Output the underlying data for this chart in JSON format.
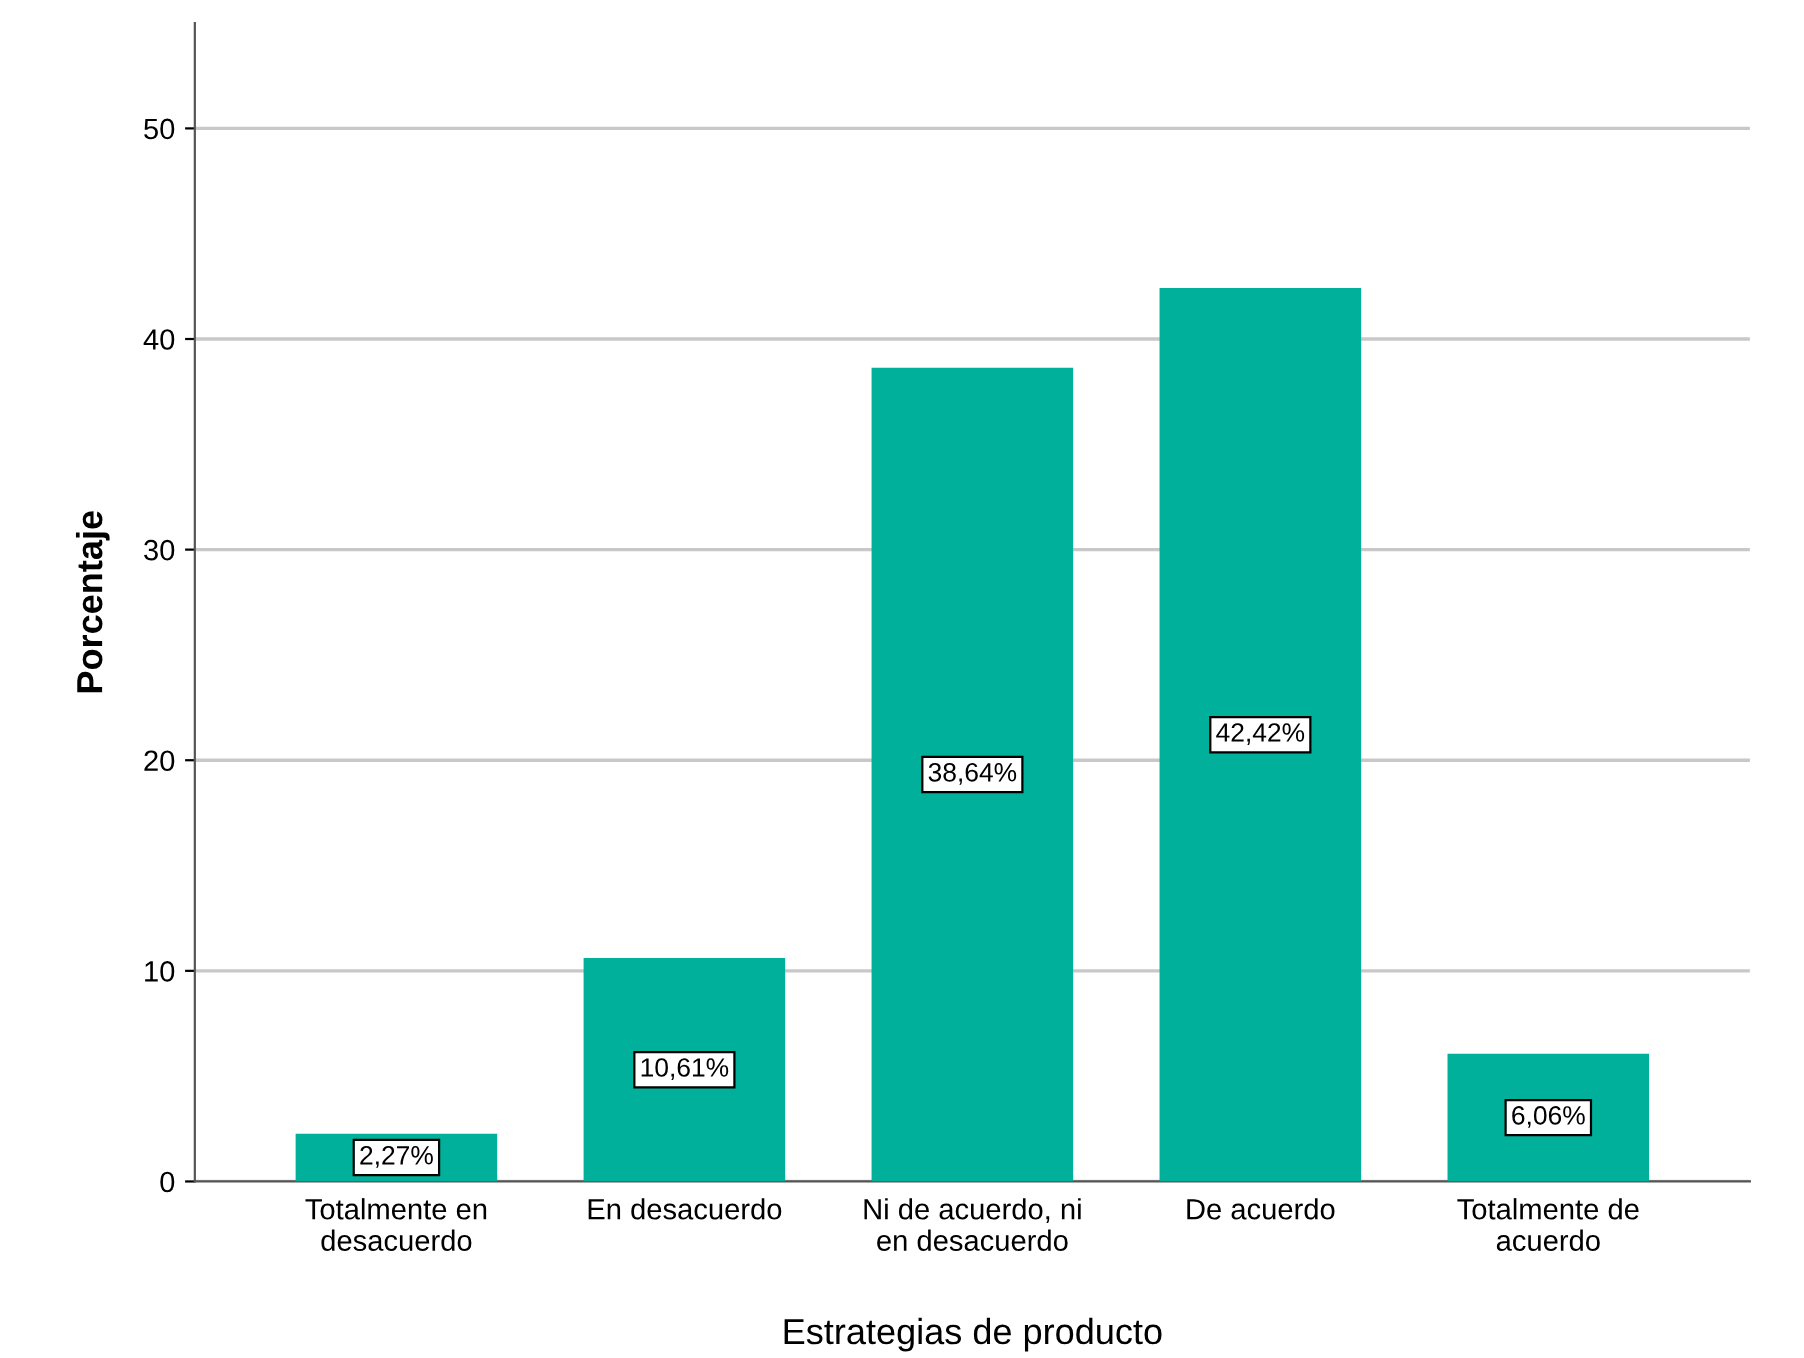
{
  "chart_data": {
    "type": "bar",
    "xlabel": "Estrategias de producto",
    "ylabel": "Porcentaje",
    "categories": [
      "Totalmente en\ndesacuerdo",
      "En desacuerdo",
      "Ni de acuerdo, ni\nen desacuerdo",
      "De acuerdo",
      "Totalmente de\nacuerdo"
    ],
    "values": [
      2.27,
      10.61,
      38.64,
      42.42,
      6.06
    ],
    "value_labels": [
      "2,27%",
      "10,61%",
      "38,64%",
      "42,42%",
      "6,06%"
    ],
    "color": "#00b09b",
    "ylim": [
      0,
      55
    ],
    "yticks": [
      0,
      10,
      20,
      30,
      40,
      50
    ],
    "grid": "y"
  }
}
